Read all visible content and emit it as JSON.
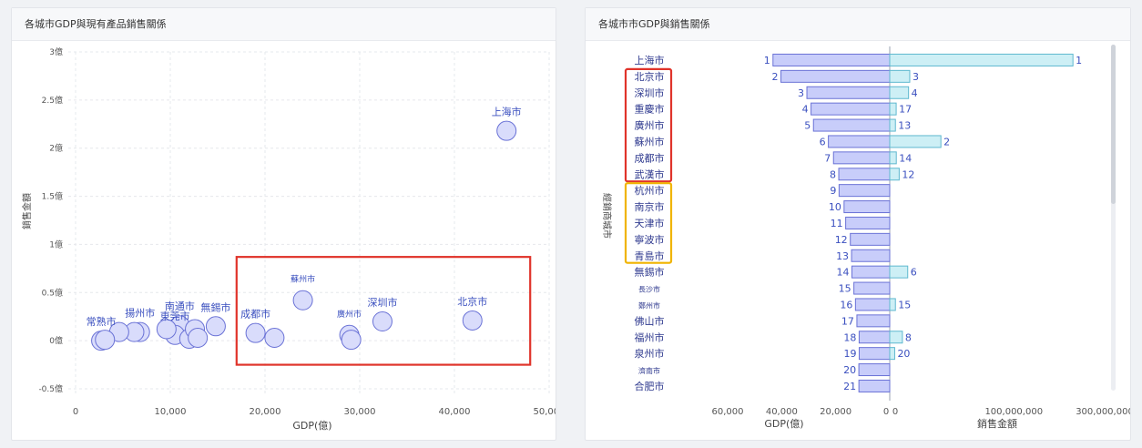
{
  "left_panel": {
    "title": "各城市GDP與現有產品銷售關係"
  },
  "right_panel": {
    "title": "各城市市GDP與銷售關係"
  },
  "chart_data": [
    {
      "type": "scatter",
      "title": "各城市GDP與現有產品銷售關係",
      "xlabel": "GDP(億)",
      "ylabel": "銷售金額",
      "xlim": [
        0,
        50000
      ],
      "ylim": [
        -0.5,
        3
      ],
      "x_ticks": [
        "0",
        "10,000",
        "20,000",
        "30,000",
        "40,000",
        "50,000"
      ],
      "y_ticks": [
        "-0.5億",
        "0億",
        "0.5億",
        "1億",
        "1.5億",
        "2億",
        "2.5億",
        "3億"
      ],
      "points": [
        {
          "label": "上海市",
          "x": 45500,
          "y": 2.18
        },
        {
          "label": "北京市",
          "x": 41900,
          "y": 0.21
        },
        {
          "label": "深圳市",
          "x": 32400,
          "y": 0.2
        },
        {
          "label": "蘇州市",
          "x": 24000,
          "y": 0.42
        },
        {
          "label": "廣州市",
          "x": 28900,
          "y": 0.06
        },
        {
          "label": "",
          "x": 29100,
          "y": 0.01
        },
        {
          "label": "成都市",
          "x": 19000,
          "y": 0.08
        },
        {
          "label": "",
          "x": 21000,
          "y": 0.03
        },
        {
          "label": "無錫市",
          "x": 14800,
          "y": 0.15
        },
        {
          "label": "南通市",
          "x": 11000,
          "y": 0.16
        },
        {
          "label": "東莞市",
          "x": 10500,
          "y": 0.06
        },
        {
          "label": "",
          "x": 9600,
          "y": 0.12
        },
        {
          "label": "",
          "x": 12000,
          "y": 0.02
        },
        {
          "label": "",
          "x": 12600,
          "y": 0.12
        },
        {
          "label": "",
          "x": 12900,
          "y": 0.03
        },
        {
          "label": "揚州市",
          "x": 6800,
          "y": 0.09
        },
        {
          "label": "",
          "x": 6200,
          "y": 0.09
        },
        {
          "label": "",
          "x": 4600,
          "y": 0.09
        },
        {
          "label": "常熟市",
          "x": 2700,
          "y": 0.0
        },
        {
          "label": "",
          "x": 3100,
          "y": 0.01
        }
      ],
      "highlight": {
        "color": "#e0342b",
        "x_range": [
          17000,
          48000
        ],
        "y_range": [
          -0.25,
          0.87
        ]
      }
    },
    {
      "type": "bar",
      "title": "各城市市GDP與銷售關係",
      "ylabel": "經銷商城市",
      "left_xlabel": "GDP(億)",
      "right_xlabel": "銷售金額",
      "left_ticks": [
        "60,000",
        "40,000",
        "20,000",
        "0"
      ],
      "right_ticks": [
        "0",
        "100,000,000",
        "300,000,000"
      ],
      "right_scale": "sqrt",
      "cities": [
        "上海市",
        "北京市",
        "深圳市",
        "重慶市",
        "廣州市",
        "蘇州市",
        "成都市",
        "武漢市",
        "杭州市",
        "南京市",
        "天津市",
        "寧波市",
        "青島市",
        "無錫市",
        "長沙市",
        "鄭州市",
        "佛山市",
        "福州市",
        "泉州市",
        "濟南市",
        "合肥市"
      ],
      "gdp": [
        43214,
        40269,
        30664,
        29129,
        28232,
        22718,
        20817,
        18866,
        18753,
        16907,
        16311,
        14595,
        14136,
        14003,
        13270,
        12691,
        12156,
        11324,
        11304,
        11432,
        11412
      ],
      "gdp_rank": [
        1,
        2,
        3,
        4,
        5,
        6,
        7,
        8,
        9,
        10,
        11,
        12,
        13,
        14,
        15,
        16,
        17,
        18,
        19,
        20,
        21
      ],
      "sales": [
        218000000,
        2600000,
        2300000,
        270000,
        210000,
        17000000,
        280000,
        580000,
        0,
        0,
        0,
        0,
        0,
        2100000,
        0,
        210000,
        0,
        1040000,
        160000,
        0,
        0
      ],
      "sales_rank": [
        1,
        3,
        4,
        17,
        13,
        2,
        14,
        12,
        null,
        null,
        null,
        null,
        null,
        6,
        null,
        15,
        null,
        8,
        20,
        null,
        null
      ],
      "groups": [
        {
          "color": "#e0342b",
          "cities": [
            "北京市",
            "深圳市",
            "重慶市",
            "廣州市",
            "蘇州市",
            "成都市",
            "武漢市"
          ]
        },
        {
          "color": "#f0b400",
          "cities": [
            "杭州市",
            "南京市",
            "天津市",
            "寧波市",
            "青島市"
          ]
        }
      ],
      "colors": {
        "gdp_fill": "#c8cdfa",
        "gdp_stroke": "#6a72d6",
        "sales_fill": "#cdeff5",
        "sales_stroke": "#5fb8cf",
        "label": "#3a4fbf"
      }
    }
  ]
}
